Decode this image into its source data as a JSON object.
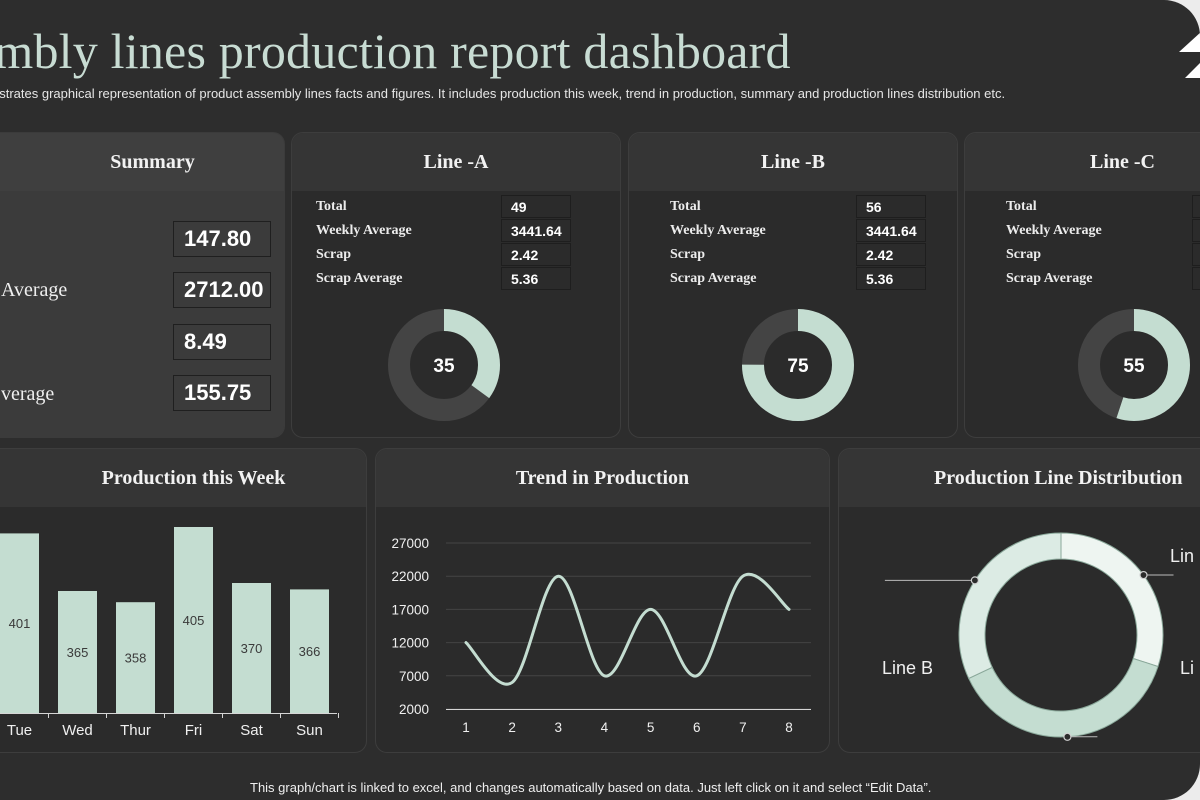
{
  "header": {
    "title": "embly lines production report dashboard",
    "subtitle": "ustrates graphical representation of product assembly lines facts and figures. It includes production this week, trend in production, summary and production lines distribution etc."
  },
  "summary": {
    "title": "Summary",
    "rows": [
      {
        "label": "",
        "value": "147.80"
      },
      {
        "label": "Average",
        "value": "2712.00"
      },
      {
        "label": "",
        "value": "8.49"
      },
      {
        "label": "verage",
        "value": "155.75"
      }
    ]
  },
  "lines": [
    {
      "title": "Line -A",
      "stats": [
        {
          "label": "Total",
          "value": "49"
        },
        {
          "label": "Weekly Average",
          "value": "3441.64"
        },
        {
          "label": "Scrap",
          "value": "2.42"
        },
        {
          "label": "Scrap Average",
          "value": "5.36"
        }
      ],
      "gauge_value": 35,
      "gauge_label": "35"
    },
    {
      "title": "Line -B",
      "stats": [
        {
          "label": "Total",
          "value": "56"
        },
        {
          "label": "Weekly Average",
          "value": "3441.64"
        },
        {
          "label": "Scrap",
          "value": "2.42"
        },
        {
          "label": "Scrap Average",
          "value": "5.36"
        }
      ],
      "gauge_value": 75,
      "gauge_label": "75"
    },
    {
      "title": "Line -C",
      "stats": [
        {
          "label": "Total",
          "value": ""
        },
        {
          "label": "Weekly Average",
          "value": ""
        },
        {
          "label": "Scrap",
          "value": ""
        },
        {
          "label": "Scrap Average",
          "value": ""
        }
      ],
      "gauge_value": 55,
      "gauge_label": "55"
    }
  ],
  "chart_data": [
    {
      "type": "bar",
      "title": "Production this Week",
      "categories": [
        "Tue",
        "Wed",
        "Thur",
        "Fri",
        "Sat",
        "Sun"
      ],
      "values": [
        401,
        365,
        358,
        405,
        370,
        366
      ],
      "data_labels": [
        "401",
        "365",
        "358",
        "405",
        "370",
        "366"
      ],
      "ylim": [
        300,
        420
      ]
    },
    {
      "type": "line",
      "title": "Trend in Production",
      "x": [
        1,
        2,
        3,
        4,
        5,
        6,
        7,
        8
      ],
      "x_labels": [
        "1",
        "2",
        "3",
        "4",
        "5",
        "6",
        "7",
        "8"
      ],
      "y": [
        12000,
        6000,
        22000,
        7000,
        17000,
        7000,
        22000,
        17000
      ],
      "y_ticks": [
        "2000",
        "7000",
        "12000",
        "17000",
        "22000",
        "27000"
      ],
      "ylim": [
        2000,
        27000
      ],
      "grid": true
    },
    {
      "type": "pie",
      "title": "Production Line Distribution",
      "labels": [
        "Line A",
        "Line B",
        "Line C"
      ],
      "values": [
        30,
        38,
        32
      ],
      "visible_labels": [
        "Lin",
        "Line B",
        "Li"
      ]
    }
  ],
  "footer": {
    "note": "This graph/chart is linked to excel,  and changes automatically based on data. Just left click on it and select “Edit Data”."
  },
  "colors": {
    "background": "#2d2d2d",
    "accent": "#c4ddd1",
    "accent_light": "#eef5f1",
    "track": "#444444",
    "card_header": "#353535"
  }
}
